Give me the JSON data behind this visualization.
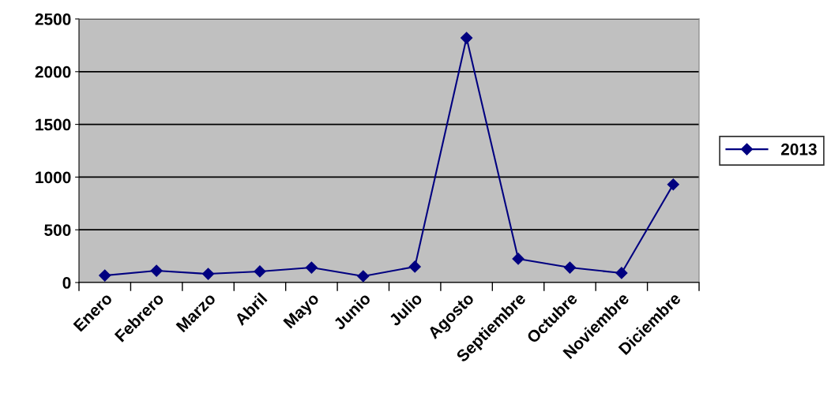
{
  "chart_data": {
    "type": "line",
    "categories": [
      "Enero",
      "Febrero",
      "Marzo",
      "Abril",
      "Mayo",
      "Junio",
      "Julio",
      "Agosto",
      "Septiembre",
      "Octubre",
      "Noviembre",
      "Diciembre"
    ],
    "series": [
      {
        "name": "2013",
        "color": "#000080",
        "values": [
          67,
          112,
          82,
          105,
          142,
          60,
          150,
          2320,
          225,
          142,
          90,
          930
        ]
      }
    ],
    "ylim": [
      0,
      2500
    ],
    "yticks": [
      0,
      500,
      1000,
      1500,
      2000,
      2500
    ],
    "grid": "y",
    "legend": "right",
    "marker": "diamond",
    "line_style": "solid"
  }
}
